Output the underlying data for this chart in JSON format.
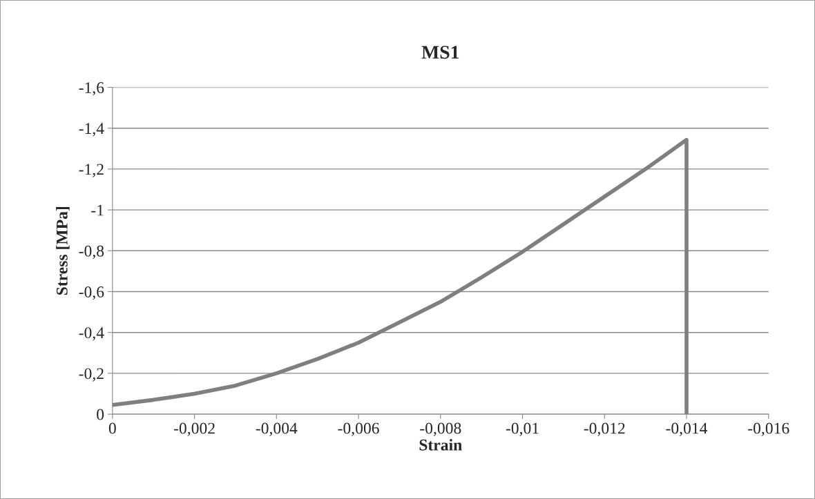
{
  "chart_data": {
    "type": "line",
    "title": "MS1",
    "xlabel": "Strain",
    "ylabel": "Stress [MPa]",
    "series": [
      {
        "color": "#7f7f7f",
        "x": [
          0,
          -0.001,
          -0.002,
          -0.003,
          -0.004,
          -0.005,
          -0.006,
          -0.007,
          -0.008,
          -0.009,
          -0.01,
          -0.011,
          -0.012,
          -0.013,
          -0.014,
          -0.014
        ],
        "values": [
          -0.045,
          -0.07,
          -0.1,
          -0.14,
          -0.2,
          -0.27,
          -0.35,
          -0.45,
          -0.55,
          -0.67,
          -0.795,
          -0.93,
          -1.065,
          -1.2,
          -1.343,
          0
        ]
      }
    ],
    "xlim": [
      0,
      -0.016
    ],
    "xticks": [
      0,
      {
        "value": -0.002,
        "label": "-0,002"
      },
      {
        "value": -0.004,
        "label": "-0,004"
      },
      {
        "value": -0.006,
        "label": "-0,006"
      },
      {
        "value": -0.008,
        "label": "-0,008"
      },
      {
        "value": -0.01,
        "label": "-0,01"
      },
      {
        "value": -0.012,
        "label": "-0,012"
      },
      {
        "value": -0.014,
        "label": "-0,014"
      },
      {
        "value": -0.016,
        "label": "-0,016"
      }
    ],
    "ylim": [
      0,
      -1.6
    ],
    "yticks": [
      0,
      {
        "value": -0.2,
        "label": "-0,2"
      },
      {
        "value": -0.4,
        "label": "-0,4"
      },
      {
        "value": -0.6,
        "label": "-0,6"
      },
      {
        "value": -0.8,
        "label": "-0,8"
      },
      {
        "value": -1,
        "label": "-1"
      },
      {
        "value": -1.2,
        "label": "-1,2"
      },
      {
        "value": -1.4,
        "label": "-1,4"
      },
      {
        "value": -1.6,
        "label": "-1,6"
      }
    ],
    "grid": "y",
    "marker": "none",
    "line_style": "solid"
  }
}
